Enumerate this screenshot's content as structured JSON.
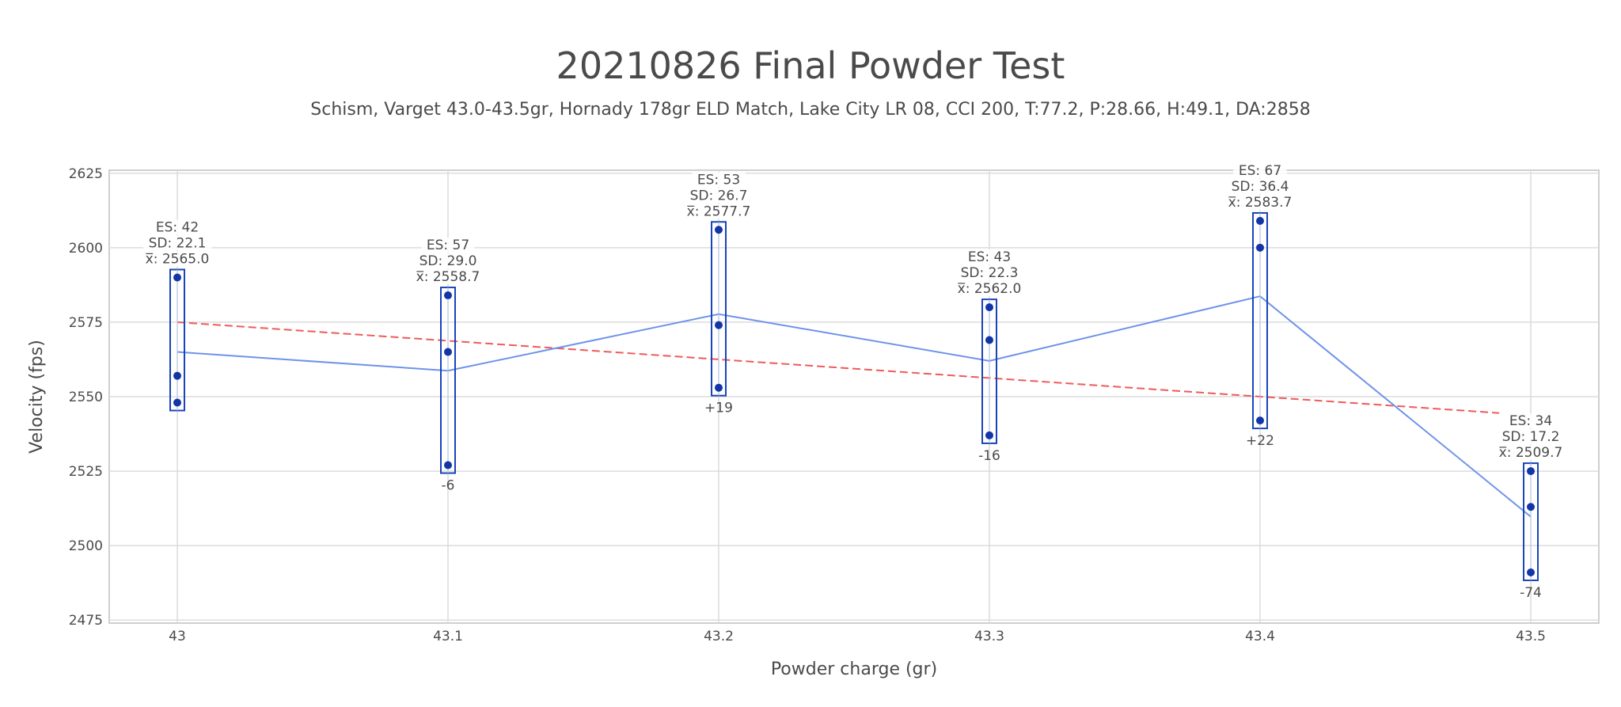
{
  "chart_data": {
    "type": "line",
    "title": "20210826 Final Powder Test",
    "subtitle": "Schism, Varget 43.0-43.5gr, Hornady 178gr ELD Match, Lake City LR 08, CCI 200, T:77.2, P:28.66, H:49.1, DA:2858",
    "xlabel": "Powder charge (gr)",
    "ylabel": "Velocity (fps)",
    "ylim": [
      2474,
      2626
    ],
    "y_ticks": [
      2475,
      2500,
      2525,
      2550,
      2575,
      2600,
      2625
    ],
    "grid": true,
    "groups": [
      {
        "x": "43",
        "shots": [
          2590,
          2557,
          2548
        ],
        "es_label": "ES: 42",
        "sd_label": "SD: 22.1",
        "mean_label": "x̅: 2565.0",
        "mean": 2565.0,
        "delta": ""
      },
      {
        "x": "43.1",
        "shots": [
          2584,
          2565,
          2527
        ],
        "es_label": "ES: 57",
        "sd_label": "SD: 29.0",
        "mean_label": "x̅: 2558.7",
        "mean": 2558.7,
        "delta": "-6"
      },
      {
        "x": "43.2",
        "shots": [
          2606,
          2574,
          2553
        ],
        "es_label": "ES: 53",
        "sd_label": "SD: 26.7",
        "mean_label": "x̅: 2577.7",
        "mean": 2577.7,
        "delta": "+19"
      },
      {
        "x": "43.3",
        "shots": [
          2580,
          2569,
          2537
        ],
        "es_label": "ES: 43",
        "sd_label": "SD: 22.3",
        "mean_label": "x̅: 2562.0",
        "mean": 2562.0,
        "delta": "-16"
      },
      {
        "x": "43.4",
        "shots": [
          2609,
          2600,
          2542
        ],
        "es_label": "ES: 67",
        "sd_label": "SD: 36.4",
        "mean_label": "x̅: 2583.7",
        "mean": 2583.7,
        "delta": "+22"
      },
      {
        "x": "43.5",
        "shots": [
          2525,
          2513,
          2491
        ],
        "es_label": "ES: 34",
        "sd_label": "SD: 17.2",
        "mean_label": "x̅: 2509.7",
        "mean": 2509.7,
        "delta": "-74"
      }
    ],
    "trendline": {
      "start": 2575,
      "end": 2544.5
    },
    "colors": {
      "mean_line": "#6f93ea",
      "shot_point": "#1236a8",
      "shot_box": "#1a44b8",
      "trendline": "#f05a5a",
      "grid": "#dcdcdc",
      "axis_frame": "#cfcfcf",
      "text": "#4a4a4a"
    }
  }
}
